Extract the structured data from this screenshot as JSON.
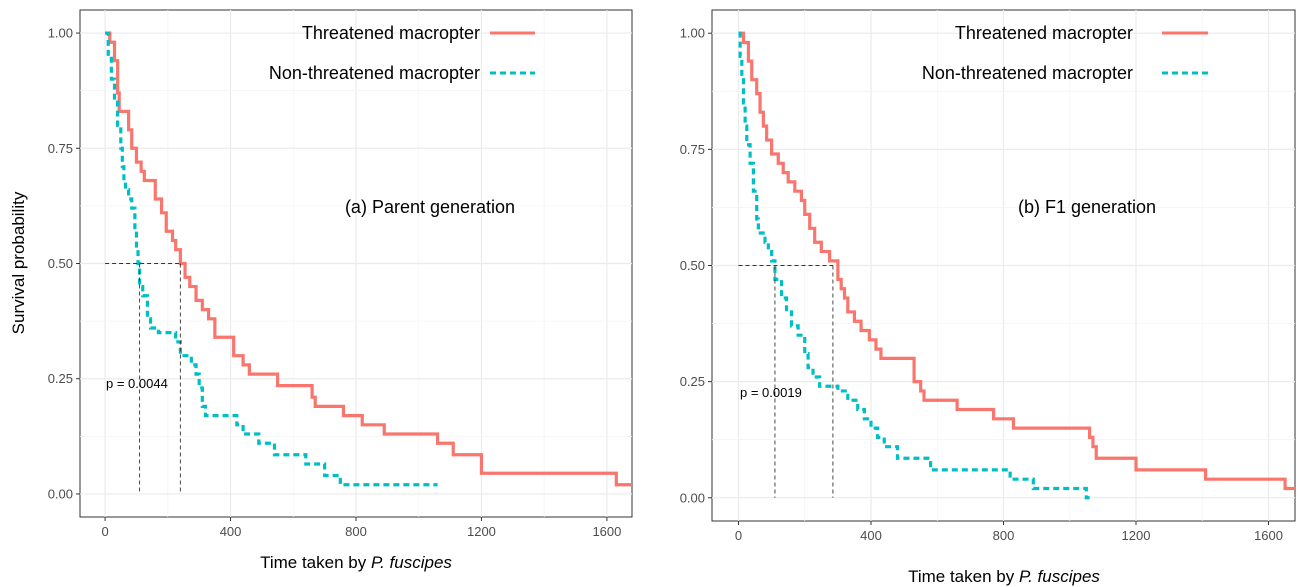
{
  "chart_data": [
    {
      "type": "line",
      "panel_label": "(a) Parent generation",
      "xlabel_prefix": "Time taken by ",
      "xlabel_species": "P. fuscipes",
      "ylabel": "Survival probability",
      "xlim": [
        -80,
        1680
      ],
      "ylim": [
        -0.05,
        1.05
      ],
      "xticks": [
        0,
        400,
        800,
        1200,
        1600
      ],
      "xtick_labels": [
        "0",
        "400",
        "800",
        "1200",
        "1600"
      ],
      "yticks": [
        0,
        0.25,
        0.5,
        0.75,
        1.0
      ],
      "ytick_labels": [
        "0.00",
        "0.25",
        "0.50",
        "0.75",
        "1.00"
      ],
      "grid": true,
      "legend_position": "top-right",
      "p_value": "p = 0.0044",
      "median_survival": {
        "Threatened macropter": 240,
        "Non-threatened macropter": 110
      },
      "series": [
        {
          "name": "Threatened macropter",
          "color": "#f8766d",
          "style": "solid",
          "steps": [
            [
              0,
              1.0
            ],
            [
              15,
              0.98
            ],
            [
              30,
              0.94
            ],
            [
              40,
              0.87
            ],
            [
              45,
              0.83
            ],
            [
              75,
              0.79
            ],
            [
              85,
              0.75
            ],
            [
              100,
              0.72
            ],
            [
              115,
              0.7
            ],
            [
              125,
              0.68
            ],
            [
              160,
              0.64
            ],
            [
              180,
              0.61
            ],
            [
              195,
              0.57
            ],
            [
              215,
              0.55
            ],
            [
              225,
              0.53
            ],
            [
              240,
              0.5
            ],
            [
              255,
              0.47
            ],
            [
              270,
              0.45
            ],
            [
              290,
              0.42
            ],
            [
              310,
              0.4
            ],
            [
              330,
              0.38
            ],
            [
              350,
              0.34
            ],
            [
              410,
              0.3
            ],
            [
              440,
              0.28
            ],
            [
              460,
              0.26
            ],
            [
              550,
              0.235
            ],
            [
              660,
              0.21
            ],
            [
              670,
              0.19
            ],
            [
              760,
              0.17
            ],
            [
              820,
              0.15
            ],
            [
              880,
              0.15
            ],
            [
              890,
              0.13
            ],
            [
              990,
              0.13
            ],
            [
              1060,
              0.11
            ],
            [
              1110,
              0.085
            ],
            [
              1200,
              0.045
            ],
            [
              1630,
              0.02
            ],
            [
              1680,
              0.02
            ]
          ]
        },
        {
          "name": "Non-threatened macropter",
          "color": "#00bfc4",
          "style": "dashed",
          "steps": [
            [
              0,
              1.0
            ],
            [
              10,
              0.95
            ],
            [
              20,
              0.9
            ],
            [
              30,
              0.85
            ],
            [
              40,
              0.8
            ],
            [
              50,
              0.75
            ],
            [
              55,
              0.71
            ],
            [
              60,
              0.68
            ],
            [
              65,
              0.66
            ],
            [
              75,
              0.64
            ],
            [
              85,
              0.62
            ],
            [
              95,
              0.57
            ],
            [
              100,
              0.53
            ],
            [
              105,
              0.5
            ],
            [
              110,
              0.45
            ],
            [
              120,
              0.43
            ],
            [
              135,
              0.38
            ],
            [
              145,
              0.36
            ],
            [
              170,
              0.35
            ],
            [
              225,
              0.33
            ],
            [
              240,
              0.3
            ],
            [
              275,
              0.28
            ],
            [
              290,
              0.26
            ],
            [
              300,
              0.23
            ],
            [
              310,
              0.19
            ],
            [
              320,
              0.17
            ],
            [
              420,
              0.15
            ],
            [
              440,
              0.13
            ],
            [
              490,
              0.11
            ],
            [
              540,
              0.085
            ],
            [
              640,
              0.065
            ],
            [
              700,
              0.04
            ],
            [
              750,
              0.02
            ],
            [
              1060,
              0.02
            ]
          ]
        }
      ]
    },
    {
      "type": "line",
      "panel_label": "(b) F1 generation",
      "xlabel_prefix": "Time taken by ",
      "xlabel_species": "P. fuscipes",
      "ylabel": "",
      "xlim": [
        -80,
        1680
      ],
      "ylim": [
        -0.05,
        1.05
      ],
      "xticks": [
        0,
        400,
        800,
        1200,
        1600
      ],
      "xtick_labels": [
        "0",
        "400",
        "800",
        "1200",
        "1600"
      ],
      "yticks": [
        0,
        0.25,
        0.5,
        0.75,
        1.0
      ],
      "ytick_labels": [
        "0.00",
        "0.25",
        "0.50",
        "0.75",
        "1.00"
      ],
      "grid": true,
      "legend_position": "top-right",
      "p_value": "p = 0.0019",
      "median_survival": {
        "Threatened macropter": 285,
        "Non-threatened macropter": 110
      },
      "series": [
        {
          "name": "Threatened macropter",
          "color": "#f8766d",
          "style": "solid",
          "steps": [
            [
              0,
              1.0
            ],
            [
              15,
              0.98
            ],
            [
              30,
              0.94
            ],
            [
              40,
              0.9
            ],
            [
              55,
              0.87
            ],
            [
              65,
              0.83
            ],
            [
              75,
              0.8
            ],
            [
              85,
              0.77
            ],
            [
              100,
              0.74
            ],
            [
              120,
              0.72
            ],
            [
              135,
              0.7
            ],
            [
              150,
              0.68
            ],
            [
              170,
              0.66
            ],
            [
              190,
              0.64
            ],
            [
              200,
              0.61
            ],
            [
              215,
              0.58
            ],
            [
              230,
              0.55
            ],
            [
              250,
              0.53
            ],
            [
              275,
              0.51
            ],
            [
              300,
              0.47
            ],
            [
              310,
              0.45
            ],
            [
              320,
              0.43
            ],
            [
              330,
              0.4
            ],
            [
              350,
              0.38
            ],
            [
              370,
              0.36
            ],
            [
              395,
              0.34
            ],
            [
              415,
              0.32
            ],
            [
              430,
              0.3
            ],
            [
              530,
              0.25
            ],
            [
              550,
              0.23
            ],
            [
              560,
              0.21
            ],
            [
              660,
              0.19
            ],
            [
              770,
              0.17
            ],
            [
              830,
              0.15
            ],
            [
              1060,
              0.13
            ],
            [
              1070,
              0.11
            ],
            [
              1080,
              0.085
            ],
            [
              1200,
              0.06
            ],
            [
              1410,
              0.04
            ],
            [
              1650,
              0.02
            ],
            [
              1680,
              0.02
            ]
          ]
        },
        {
          "name": "Non-threatened macropter",
          "color": "#00bfc4",
          "style": "dashed",
          "steps": [
            [
              0,
              1.0
            ],
            [
              5,
              0.95
            ],
            [
              10,
              0.9
            ],
            [
              15,
              0.85
            ],
            [
              20,
              0.8
            ],
            [
              25,
              0.76
            ],
            [
              35,
              0.72
            ],
            [
              45,
              0.66
            ],
            [
              55,
              0.6
            ],
            [
              60,
              0.57
            ],
            [
              80,
              0.55
            ],
            [
              90,
              0.53
            ],
            [
              100,
              0.51
            ],
            [
              110,
              0.47
            ],
            [
              130,
              0.43
            ],
            [
              145,
              0.4
            ],
            [
              160,
              0.37
            ],
            [
              180,
              0.35
            ],
            [
              200,
              0.31
            ],
            [
              210,
              0.28
            ],
            [
              225,
              0.26
            ],
            [
              245,
              0.24
            ],
            [
              300,
              0.23
            ],
            [
              330,
              0.21
            ],
            [
              360,
              0.19
            ],
            [
              380,
              0.17
            ],
            [
              400,
              0.15
            ],
            [
              420,
              0.13
            ],
            [
              440,
              0.11
            ],
            [
              480,
              0.085
            ],
            [
              580,
              0.06
            ],
            [
              820,
              0.04
            ],
            [
              890,
              0.02
            ],
            [
              1050,
              0.0
            ],
            [
              1060,
              0.0
            ]
          ]
        }
      ]
    }
  ]
}
